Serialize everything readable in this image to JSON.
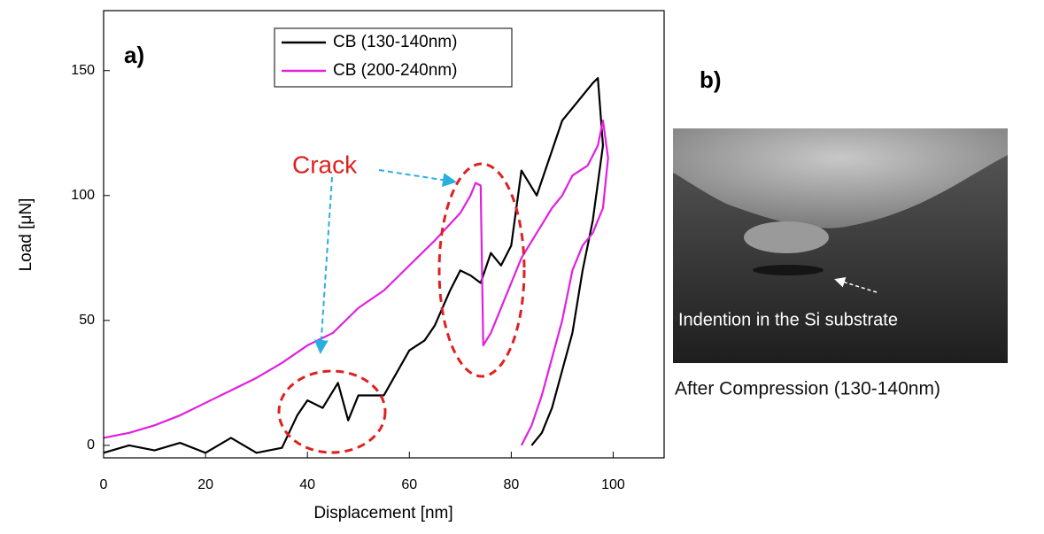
{
  "chart_data": {
    "type": "line",
    "x_label": "Displacement [nm]",
    "y_label": "Load [μN]",
    "xlim": [
      0,
      110
    ],
    "xticks": [
      0,
      20,
      40,
      60,
      80,
      100
    ],
    "ylim": [
      -5,
      174
    ],
    "yticks": [
      0,
      50,
      100,
      150
    ],
    "series": [
      {
        "name": "CB (130-140nm)",
        "color": "#000000",
        "x": [
          0,
          5,
          10,
          15,
          20,
          25,
          30,
          35,
          38,
          40,
          43,
          46,
          48,
          50,
          55,
          60,
          63,
          65,
          68,
          70,
          72,
          74,
          76,
          78,
          80,
          82,
          85,
          88,
          90,
          92,
          94,
          96,
          97,
          98,
          96,
          94,
          92,
          90,
          88,
          86,
          84
        ],
        "values": [
          -3,
          0,
          -2,
          1,
          -3,
          3,
          -3,
          -1,
          12,
          18,
          15,
          25,
          10,
          20,
          20,
          38,
          42,
          48,
          62,
          70,
          68,
          65,
          77,
          72,
          80,
          110,
          100,
          118,
          130,
          135,
          140,
          145,
          147,
          120,
          90,
          70,
          45,
          30,
          15,
          5,
          0
        ]
      },
      {
        "name": "CB (200-240nm)",
        "color": "#e020e0",
        "x": [
          0,
          5,
          10,
          15,
          20,
          25,
          30,
          35,
          40,
          45,
          50,
          55,
          60,
          65,
          70,
          72,
          73,
          74,
          74.5,
          76,
          78,
          80,
          82,
          85,
          88,
          90,
          92,
          95,
          97,
          98,
          99,
          98,
          96,
          94,
          92,
          90,
          88,
          86,
          84,
          82
        ],
        "values": [
          3,
          5,
          8,
          12,
          17,
          22,
          27,
          33,
          40,
          45,
          55,
          62,
          72,
          82,
          93,
          100,
          105,
          104,
          40,
          45,
          55,
          65,
          75,
          85,
          95,
          100,
          108,
          112,
          120,
          130,
          115,
          95,
          85,
          80,
          70,
          50,
          35,
          20,
          8,
          0
        ]
      }
    ],
    "annotations": {
      "panel_a": "a)",
      "panel_b": "b)",
      "crack": "Crack",
      "image_label": "Indention in the Si substrate",
      "image_caption": "After Compression (130-140nm)"
    }
  }
}
